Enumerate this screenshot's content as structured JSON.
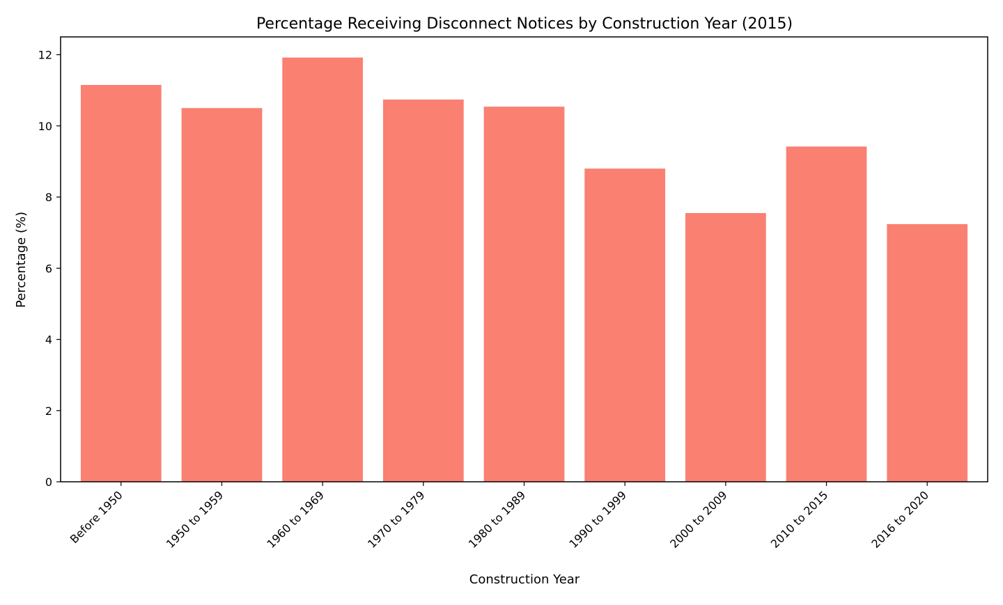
{
  "chart_data": {
    "type": "bar",
    "title": "Percentage Receiving Disconnect Notices by Construction Year (2015)",
    "xlabel": "Construction Year",
    "ylabel": "Percentage (%)",
    "categories": [
      "Before 1950",
      "1950 to 1959",
      "1960 to 1969",
      "1970 to 1979",
      "1980 to 1989",
      "1990 to 1999",
      "2000 to 2009",
      "2010 to 2015",
      "2016 to 2020"
    ],
    "values": [
      11.15,
      10.5,
      11.92,
      10.74,
      10.54,
      8.8,
      7.55,
      9.42,
      7.24
    ],
    "ylim": [
      0,
      12.5
    ],
    "yticks": [
      0,
      2,
      4,
      6,
      8,
      10,
      12
    ],
    "grid": false,
    "bar_color": "#fa8072"
  }
}
